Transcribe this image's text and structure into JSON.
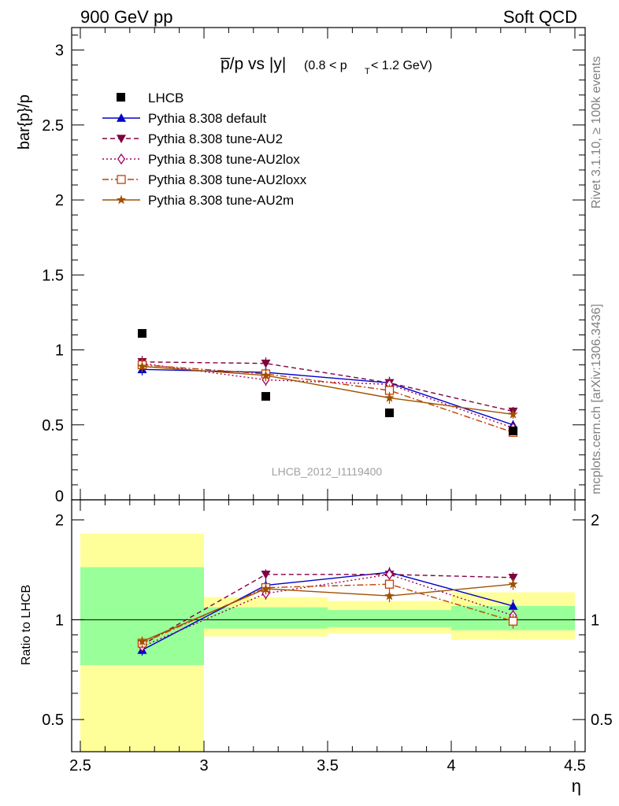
{
  "header": {
    "left": "900 GeV pp",
    "right": "Soft QCD"
  },
  "side_labels": {
    "rivet": "Rivet 3.1.10, ≥ 100k events",
    "mcplots": "mcplots.cern.ch [arXiv:1306.3436]"
  },
  "watermark": "LHCB_2012_I1119400",
  "chart_data": [
    {
      "type": "scatter",
      "title": {
        "main": "p̅/p vs |y|",
        "cut_open": "(0.8 < p",
        "cut_sub": "T",
        "cut_close": " < 1.2 GeV)"
      },
      "ylabel": "bar{p}/p",
      "xlim": [
        2.5,
        4.5
      ],
      "ylim": [
        0,
        3.15
      ],
      "yticks": [
        0.5,
        1,
        1.5,
        2,
        2.5,
        3
      ],
      "ytick_labels": [
        "0.5",
        "1",
        "1.5",
        "2",
        "2.5",
        "3"
      ],
      "ytick_partial_label": "0",
      "legend_position": "top-left",
      "data": {
        "name": "LHCB",
        "x": [
          2.75,
          3.25,
          3.75,
          4.25
        ],
        "y": [
          1.11,
          0.69,
          0.58,
          0.46
        ]
      },
      "series": [
        {
          "name": "Pythia 8.308 default",
          "color": "#0000cc",
          "marker": "triangle-up",
          "dash": "solid",
          "x": [
            2.75,
            3.25,
            3.75,
            4.25
          ],
          "y": [
            0.87,
            0.85,
            0.78,
            0.5
          ],
          "err": [
            0.04,
            0.03,
            0.04,
            0.03
          ]
        },
        {
          "name": "Pythia 8.308 tune-AU2",
          "color": "#800040",
          "marker": "triangle-down",
          "dash": "dashed",
          "x": [
            2.75,
            3.25,
            3.75,
            4.25
          ],
          "y": [
            0.92,
            0.91,
            0.78,
            0.59
          ],
          "err": [
            0.04,
            0.04,
            0.04,
            0.03
          ]
        },
        {
          "name": "Pythia 8.308 tune-AU2lox",
          "color": "#a0005a",
          "marker": "diamond-open",
          "dash": "dotted",
          "x": [
            2.75,
            3.25,
            3.75,
            4.25
          ],
          "y": [
            0.91,
            0.8,
            0.77,
            0.48
          ],
          "err": [
            0.04,
            0.04,
            0.04,
            0.03
          ]
        },
        {
          "name": "Pythia 8.308 tune-AU2loxx",
          "color": "#c04000",
          "marker": "square-open",
          "dash": "dashdot",
          "x": [
            2.75,
            3.25,
            3.75,
            4.25
          ],
          "y": [
            0.9,
            0.84,
            0.73,
            0.45
          ],
          "err": [
            0.04,
            0.04,
            0.04,
            0.03
          ]
        },
        {
          "name": "Pythia 8.308 tune-AU2m",
          "color": "#a05000",
          "marker": "star",
          "dash": "solid",
          "x": [
            2.75,
            3.25,
            3.75,
            4.25
          ],
          "y": [
            0.89,
            0.83,
            0.68,
            0.57
          ],
          "err": [
            0.04,
            0.04,
            0.04,
            0.03
          ]
        }
      ]
    },
    {
      "type": "scatter",
      "xlabel": "η",
      "ylabel": "Ratio to LHCB",
      "xlim": [
        2.5,
        4.5
      ],
      "ylim": [
        0.4,
        2.3
      ],
      "log_y": true,
      "xticks": [
        2.5,
        3,
        3.5,
        4,
        4.5
      ],
      "xtick_labels": [
        "2.5",
        "3",
        "3.5",
        "4",
        "4.5"
      ],
      "yticks": [
        0.5,
        1,
        2
      ],
      "ytick_labels": [
        "0.5",
        "1",
        "2"
      ],
      "reference_line": 1,
      "bands": [
        {
          "x0": 2.5,
          "x1": 3.0,
          "inner": [
            0.73,
            1.44
          ],
          "outer": [
            0.4,
            1.82
          ]
        },
        {
          "x0": 3.0,
          "x1": 3.5,
          "inner": [
            0.94,
            1.09
          ],
          "outer": [
            0.89,
            1.17
          ]
        },
        {
          "x0": 3.5,
          "x1": 4.0,
          "inner": [
            0.95,
            1.07
          ],
          "outer": [
            0.91,
            1.14
          ]
        },
        {
          "x0": 4.0,
          "x1": 4.5,
          "inner": [
            0.93,
            1.1
          ],
          "outer": [
            0.87,
            1.21
          ]
        }
      ],
      "series": [
        {
          "name": "Pythia 8.308 default",
          "x": [
            2.75,
            3.25,
            3.75,
            4.25
          ],
          "y": [
            0.81,
            1.27,
            1.39,
            1.1
          ],
          "err": [
            0.03,
            0.05,
            0.05,
            0.05
          ]
        },
        {
          "name": "Pythia 8.308 tune-AU2",
          "x": [
            2.75,
            3.25,
            3.75,
            4.25
          ],
          "y": [
            0.84,
            1.37,
            1.37,
            1.34
          ],
          "err": [
            0.03,
            0.05,
            0.05,
            0.05
          ]
        },
        {
          "name": "Pythia 8.308 tune-AU2lox",
          "x": [
            2.75,
            3.25,
            3.75,
            4.25
          ],
          "y": [
            0.83,
            1.2,
            1.37,
            1.03
          ],
          "err": [
            0.03,
            0.05,
            0.05,
            0.05
          ]
        },
        {
          "name": "Pythia 8.308 tune-AU2loxx",
          "x": [
            2.75,
            3.25,
            3.75,
            4.25
          ],
          "y": [
            0.85,
            1.25,
            1.28,
            0.99
          ],
          "err": [
            0.03,
            0.05,
            0.05,
            0.05
          ]
        },
        {
          "name": "Pythia 8.308 tune-AU2m",
          "x": [
            2.75,
            3.25,
            3.75,
            4.25
          ],
          "y": [
            0.86,
            1.24,
            1.18,
            1.28
          ],
          "err": [
            0.03,
            0.05,
            0.05,
            0.05
          ]
        }
      ]
    }
  ]
}
